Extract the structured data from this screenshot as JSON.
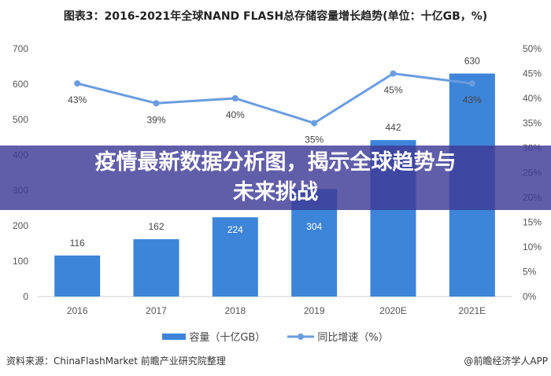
{
  "chart_data": {
    "type": "bar",
    "title": "图表3：2016-2021年全球NAND FLASH总存储容量增长趋势(单位：十亿GB，%)",
    "categories": [
      "2016",
      "2017",
      "2018",
      "2019",
      "2020E",
      "2021E"
    ],
    "series": [
      {
        "name": "容量（十亿GB）",
        "type": "bar",
        "axis": "left",
        "color": "#3d85d8",
        "values": [
          116,
          162,
          224,
          304,
          442,
          630
        ]
      },
      {
        "name": "同比增速（%）",
        "type": "line",
        "axis": "right",
        "color": "#6a9de0",
        "values": [
          43,
          39,
          40,
          35,
          45,
          43
        ]
      }
    ],
    "left_axis": {
      "ylim": [
        0,
        700
      ],
      "ticks": [
        0,
        100,
        200,
        300,
        400,
        500,
        600,
        700
      ]
    },
    "right_axis": {
      "ylim": [
        0,
        50
      ],
      "ticks": [
        "0%",
        "5%",
        "10%",
        "15%",
        "20%",
        "25%",
        "30%",
        "35%",
        "40%",
        "45%",
        "50%"
      ]
    },
    "legend_position": "bottom"
  },
  "banner": "疫情最新数据分析图，揭示全球趋势与未来挑战",
  "footer": {
    "source": "资料来源：ChinaFlashMarket 前瞻产业研究院整理",
    "credit": "@前瞻经济学人APP"
  }
}
